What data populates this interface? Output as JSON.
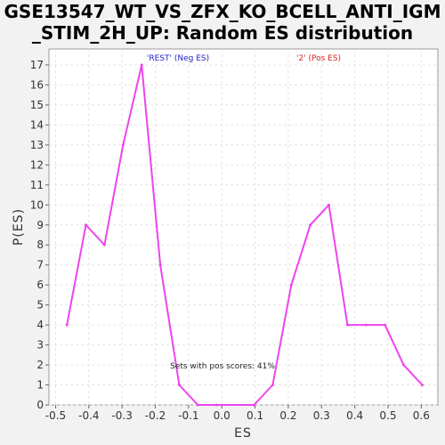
{
  "chart_data": {
    "type": "line",
    "title_line1": "GSE13547_WT_VS_ZFX_KO_BCELL_ANTI_IGM",
    "title_line2": "_STIM_2H_UP: Random ES distribution",
    "xlabel": "ES",
    "ylabel": "P(ES)",
    "xlim": [
      -0.52,
      0.65
    ],
    "ylim": [
      0,
      17.8
    ],
    "x_ticks": [
      -0.5,
      -0.4,
      -0.3,
      -0.2,
      -0.1,
      0.0,
      0.1,
      0.2,
      0.3,
      0.4,
      0.5,
      0.6
    ],
    "x_tick_labels": [
      "-0.5",
      "-0.4",
      "-0.3",
      "-0.2",
      "-0.1",
      "0.0",
      "0.1",
      "0.2",
      "0.3",
      "0.4",
      "0.5",
      "0.6"
    ],
    "y_ticks": [
      0,
      1,
      2,
      3,
      4,
      5,
      6,
      7,
      8,
      9,
      10,
      11,
      12,
      13,
      14,
      15,
      16,
      17
    ],
    "grid": true,
    "series": [
      {
        "name": "Random ES distribution",
        "color": "#ee44ee",
        "x": [
          -0.466,
          -0.409,
          -0.353,
          -0.297,
          -0.241,
          -0.185,
          -0.128,
          -0.072,
          -0.016,
          0.097,
          0.153,
          0.209,
          0.266,
          0.322,
          0.378,
          0.434,
          0.491,
          0.547,
          0.603
        ],
        "y": [
          4,
          9,
          8,
          13,
          17,
          7,
          1,
          0,
          0,
          0,
          1,
          6,
          9,
          10,
          4,
          4,
          4,
          2,
          1
        ]
      }
    ],
    "annotations": [
      {
        "text": "'REST' (Neg ES)",
        "color": "#2222cc"
      },
      {
        "text": "'2' (Pos ES)",
        "color": "#dd2222"
      },
      {
        "text": "Sets with pos scores: 41%",
        "color": "#222222"
      }
    ]
  }
}
